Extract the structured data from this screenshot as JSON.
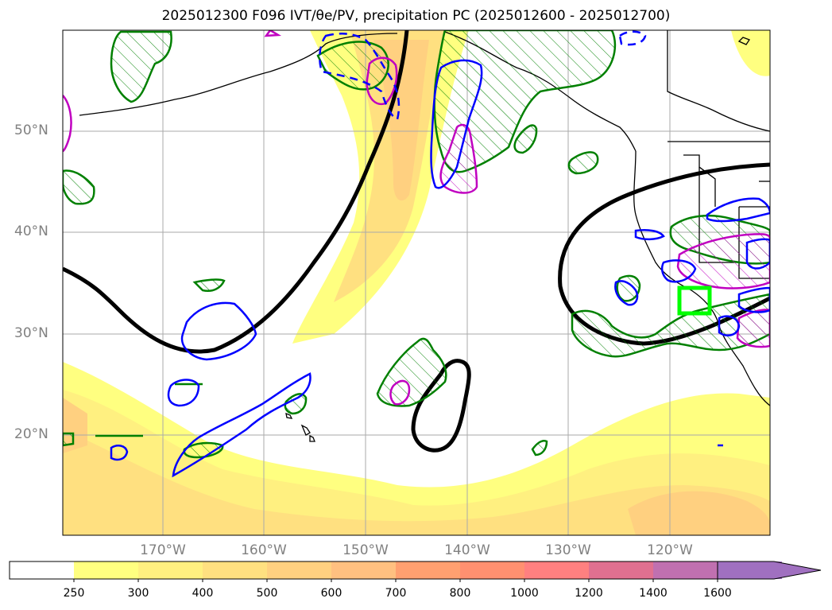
{
  "title": "2025012300 F096 IVT/θe/PV, precipitation PC (2025012600 - 2025012700)",
  "map": {
    "lat_labels": [
      "50°N",
      "40°N",
      "30°N",
      "20°N"
    ],
    "lon_labels": [
      "170°W",
      "160°W",
      "150°W",
      "140°W",
      "130°W",
      "120°W"
    ],
    "colors": {
      "ivt_250": "#ffff80",
      "ivt_300": "#fff080",
      "ivt_400": "#ffe080",
      "ivt_500": "#ffd080",
      "theta_e_contour": "#000000",
      "pv_positive": "#0000ff",
      "precip": "#008000",
      "pv_magenta": "#c000c0",
      "target_box": "#00ff00",
      "coastline": "#000000"
    }
  },
  "colorbar": {
    "labels": [
      "250",
      "300",
      "400",
      "500",
      "600",
      "700",
      "800",
      "1000",
      "1200",
      "1400",
      "1600"
    ],
    "colors": [
      "#ffffff",
      "#ffff80",
      "#fff080",
      "#ffe080",
      "#ffd080",
      "#ffc080",
      "#ffa070",
      "#ff9070",
      "#ff8080",
      "#e07090",
      "#c070b0",
      "#a070c0"
    ],
    "extend": "max"
  }
}
